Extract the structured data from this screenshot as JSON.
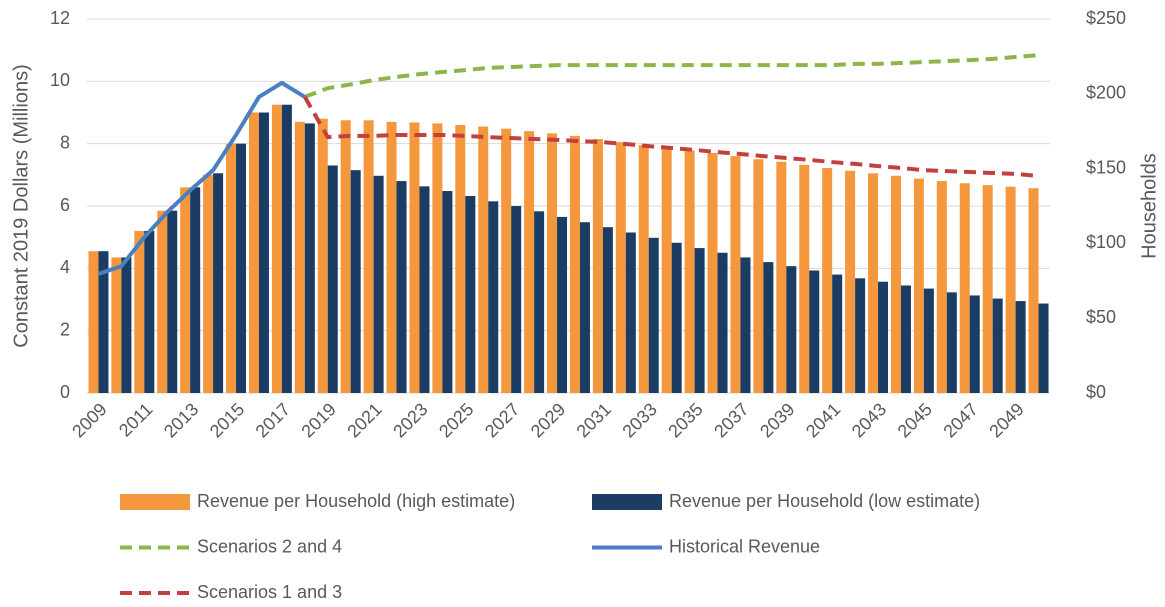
{
  "chart_data": {
    "type": "bar",
    "y_label": "Constant 2019 Dollars (Millions)",
    "y2_label": "Households",
    "categories": [
      "2009",
      null,
      "2011",
      null,
      "2013",
      null,
      "2015",
      null,
      "2017",
      null,
      "2019",
      null,
      "2021",
      null,
      "2023",
      null,
      "2025",
      null,
      "2027",
      null,
      "2029",
      null,
      "2031",
      null,
      "2033",
      null,
      "2035",
      null,
      "2037",
      null,
      "2039",
      null,
      "2041",
      null,
      "2043",
      null,
      "2045",
      null,
      "2047",
      null,
      "2049",
      null
    ],
    "series": [
      {
        "name": "Revenue per Household (high estimate)",
        "type": "bar",
        "color": "#f4973d",
        "values": [
          4.55,
          4.35,
          5.2,
          5.85,
          6.6,
          7.0,
          8.0,
          9.0,
          9.25,
          8.7,
          8.8,
          8.75,
          8.75,
          8.7,
          8.68,
          8.65,
          8.6,
          8.55,
          8.48,
          8.4,
          8.33,
          8.25,
          8.15,
          8.05,
          7.95,
          7.85,
          7.78,
          7.7,
          7.6,
          7.5,
          7.42,
          7.32,
          7.22,
          7.13,
          7.05,
          6.97,
          6.88,
          6.8,
          6.73,
          6.67,
          6.62,
          6.57
        ]
      },
      {
        "name": "Revenue per Household (low estimate)",
        "type": "bar",
        "color": "#1b3d63",
        "values": [
          4.55,
          4.35,
          5.2,
          5.85,
          6.6,
          7.05,
          8.0,
          9.0,
          9.25,
          8.65,
          7.3,
          7.15,
          6.97,
          6.8,
          6.63,
          6.48,
          6.32,
          6.15,
          6.0,
          5.83,
          5.65,
          5.48,
          5.32,
          5.15,
          4.98,
          4.82,
          4.65,
          4.5,
          4.35,
          4.2,
          4.07,
          3.93,
          3.8,
          3.68,
          3.57,
          3.45,
          3.35,
          3.23,
          3.13,
          3.03,
          2.95,
          2.87
        ]
      },
      {
        "name": "Scenarios 2 and 4",
        "type": "line",
        "dashed": true,
        "color": "#8db54a",
        "values": [
          null,
          null,
          null,
          null,
          null,
          null,
          null,
          null,
          null,
          9.5,
          9.78,
          9.9,
          10.04,
          10.14,
          10.23,
          10.3,
          10.36,
          10.43,
          10.46,
          10.49,
          10.52,
          10.52,
          10.52,
          10.52,
          10.52,
          10.52,
          10.52,
          10.52,
          10.52,
          10.52,
          10.52,
          10.52,
          10.52,
          10.56,
          10.56,
          10.59,
          10.62,
          10.65,
          10.68,
          10.72,
          10.78,
          10.84
        ]
      },
      {
        "name": "Historical Revenue",
        "type": "line",
        "dashed": false,
        "color": "#4a7fc1",
        "values": [
          3.82,
          4.07,
          5.0,
          5.8,
          6.5,
          7.15,
          8.28,
          9.5,
          9.95,
          9.5,
          null,
          null,
          null,
          null,
          null,
          null,
          null,
          null,
          null,
          null,
          null,
          null,
          null,
          null,
          null,
          null,
          null,
          null,
          null,
          null,
          null,
          null,
          null,
          null,
          null,
          null,
          null,
          null,
          null,
          null,
          null,
          null
        ]
      },
      {
        "name": "Scenarios 1 and 3",
        "type": "line",
        "dashed": true,
        "color": "#c0413e",
        "values": [
          null,
          null,
          null,
          null,
          null,
          null,
          null,
          null,
          null,
          9.5,
          8.21,
          8.25,
          8.25,
          8.28,
          8.28,
          8.28,
          8.25,
          8.21,
          8.18,
          8.15,
          8.12,
          8.08,
          8.05,
          7.99,
          7.92,
          7.86,
          7.8,
          7.73,
          7.67,
          7.6,
          7.54,
          7.48,
          7.41,
          7.35,
          7.28,
          7.22,
          7.15,
          7.12,
          7.09,
          7.06,
          7.03,
          6.96
        ]
      }
    ],
    "ylim": [
      0,
      12
    ],
    "yticks": [
      0,
      2,
      4,
      6,
      8,
      10,
      12
    ],
    "y2lim": [
      0,
      250
    ],
    "y2ticks": [
      {
        "value": 0,
        "label": "$0"
      },
      {
        "value": 50,
        "label": "$50"
      },
      {
        "value": 100,
        "label": "$100"
      },
      {
        "value": 150,
        "label": "$150"
      },
      {
        "value": 200,
        "label": "$200"
      },
      {
        "value": 250,
        "label": "$250"
      }
    ],
    "grid": true,
    "legend": "bottom"
  }
}
